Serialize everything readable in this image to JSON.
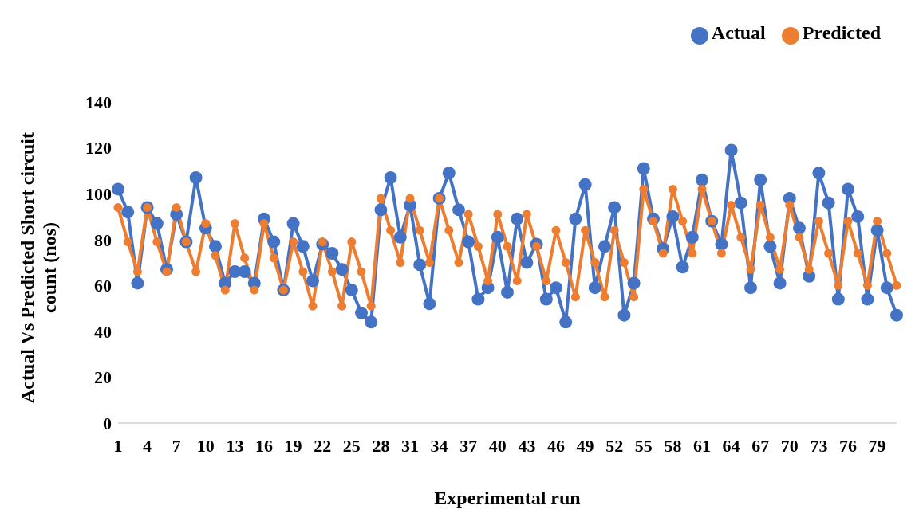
{
  "chart_data": {
    "type": "line",
    "xlabel": "Experimental run",
    "ylabel": "Actual Vs Predicted Short circuit count (nos)",
    "categories": [
      "1",
      null,
      null,
      "4",
      null,
      null,
      "7",
      null,
      null,
      "10",
      null,
      null,
      "13",
      null,
      null,
      "16",
      null,
      null,
      "19",
      null,
      null,
      "22",
      null,
      null,
      "25",
      null,
      null,
      "28",
      null,
      null,
      "31",
      null,
      null,
      "34",
      null,
      null,
      "37",
      null,
      null,
      "40",
      null,
      null,
      "43",
      null,
      null,
      "46",
      null,
      null,
      "49",
      null,
      null,
      "52",
      null,
      null,
      "55",
      null,
      null,
      "58",
      null,
      null,
      "61",
      null,
      null,
      "64",
      null,
      null,
      "67",
      null,
      null,
      "70",
      null,
      null,
      "73",
      null,
      null,
      "76",
      null,
      null,
      "79",
      null,
      null
    ],
    "series": [
      {
        "name": "Actual",
        "color": "#4472c4",
        "values": [
          102,
          92,
          61,
          94,
          87,
          67,
          91,
          79,
          107,
          85,
          77,
          61,
          66,
          66,
          61,
          89,
          79,
          58,
          87,
          77,
          62,
          78,
          74,
          67,
          58,
          48,
          44,
          93,
          107,
          81,
          95,
          69,
          52,
          98,
          109,
          93,
          79,
          54,
          59,
          81,
          57,
          89,
          70,
          78,
          54,
          59,
          44,
          89,
          104,
          59,
          77,
          94,
          47,
          61,
          111,
          89,
          76,
          90,
          68,
          81,
          106,
          88,
          78,
          119,
          96,
          59,
          106,
          77,
          61,
          98,
          85,
          64,
          109,
          96,
          54,
          102,
          90,
          54,
          84,
          59,
          47
        ]
      },
      {
        "name": "Predicted",
        "color": "#ed7d31",
        "values": [
          94,
          79,
          66,
          94,
          79,
          66,
          94,
          79,
          66,
          87,
          73,
          58,
          87,
          72,
          58,
          87,
          72,
          58,
          79,
          66,
          51,
          79,
          66,
          51,
          79,
          66,
          51,
          98,
          84,
          70,
          98,
          84,
          70,
          98,
          84,
          70,
          91,
          77,
          62,
          91,
          77,
          62,
          91,
          77,
          62,
          84,
          70,
          55,
          84,
          70,
          55,
          84,
          70,
          55,
          102,
          88,
          74,
          102,
          88,
          74,
          102,
          88,
          74,
          95,
          81,
          67,
          95,
          81,
          67,
          95,
          81,
          67,
          88,
          74,
          60,
          88,
          74,
          60,
          88,
          74,
          60
        ]
      }
    ],
    "ylim": [
      0,
      140
    ],
    "yticks": [
      0,
      20,
      40,
      60,
      80,
      100,
      120,
      140
    ],
    "grid": false,
    "legend": "top right",
    "marker": "circle",
    "line_style": "solid"
  }
}
